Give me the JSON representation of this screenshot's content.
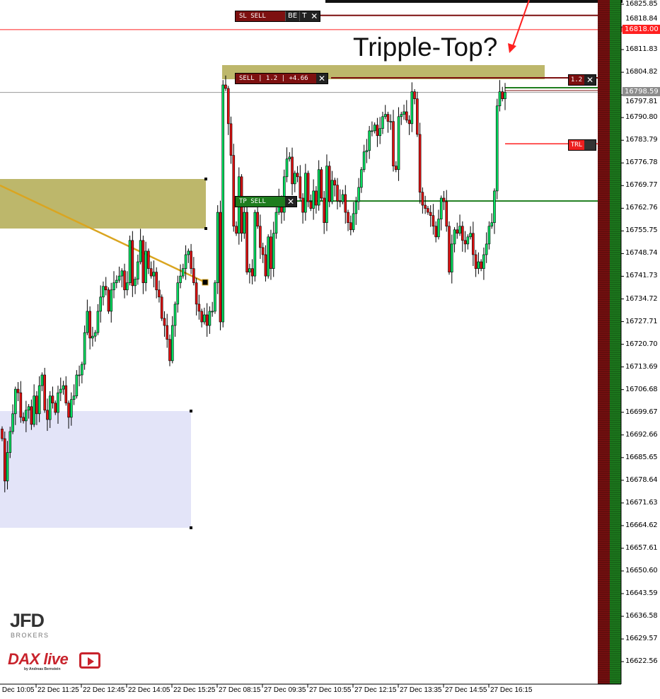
{
  "chart_data": {
    "type": "candlestick",
    "annotation": "Tripple-Top?",
    "ylim": [
      16619.5,
      16827.16
    ],
    "y_ticks": [
      "16825.85",
      "16818.84",
      "16811.83",
      "16804.82",
      "16797.81",
      "16790.80",
      "16783.79",
      "16776.78",
      "16769.77",
      "16762.76",
      "16755.75",
      "16748.74",
      "16741.73",
      "16734.72",
      "16727.71",
      "16720.70",
      "16713.69",
      "16706.68",
      "16699.67",
      "16692.66",
      "16685.65",
      "16678.64",
      "16671.63",
      "16664.62",
      "16657.61",
      "16650.60",
      "16643.59",
      "16636.58",
      "16629.57",
      "16622.56"
    ],
    "x_ticks": [
      "22 Dec 10:05",
      "22 Dec 11:25",
      "22 Dec 12:45",
      "22 Dec 14:05",
      "22 Dec 15:25",
      "27 Dec 08:15",
      "27 Dec 09:35",
      "27 Dec 10:55",
      "27 Dec 12:15",
      "27 Dec 13:35",
      "27 Dec 14:55",
      "27 Dec 16:15"
    ],
    "closes": [
      16691.5,
      16678.4,
      16687.2,
      16693.7,
      16699.2,
      16706.8,
      16705.7,
      16698.1,
      16697.0,
      16700.3,
      16701.4,
      16695.9,
      16704.7,
      16699.2,
      16707.9,
      16711.2,
      16700.3,
      16697.4,
      16704.7,
      16702.5,
      16699.6,
      16705.7,
      16706.8,
      16707.9,
      16702.5,
      16698.1,
      16703.6,
      16704.7,
      16711.2,
      16711.2,
      16714.5,
      16724.3,
      16730.9,
      16722.6,
      16723.2,
      16724.3,
      16730.9,
      16735.3,
      16738.6,
      16737.5,
      16730.9,
      16737.5,
      16739.7,
      16740.5,
      16741.8,
      16743.4,
      16737.5,
      16739.7,
      16752.8,
      16738.8,
      16740.8,
      16746.2,
      16752.8,
      16739.7,
      16749.5,
      16744.1,
      16741.8,
      16743.0,
      16737.5,
      16735.3,
      16728.7,
      16726.5,
      16722.2,
      16715.6,
      16726.5,
      16733.1,
      16739.7,
      16741.8,
      16744.1,
      16748.4,
      16749.5,
      16744.1,
      16739.7,
      16733.1,
      16730.9,
      16727.6,
      16729.8,
      16726.5,
      16730.9,
      16730.9,
      16739.7,
      16761.5,
      16727.6,
      16800.9,
      16799.8,
      16788.9,
      16779.1,
      16757.2,
      16755.0,
      16772.5,
      16755.0,
      16761.5,
      16743.0,
      16744.1,
      16741.8,
      16761.5,
      16757.2,
      16750.6,
      16748.4,
      16741.8,
      16753.9,
      16744.1,
      16755.0,
      16761.5,
      16765.9,
      16761.5,
      16772.5,
      16778.0,
      16778.6,
      16770.3,
      16773.6,
      16772.5,
      16765.9,
      16761.5,
      16773.6,
      16764.8,
      16762.7,
      16768.1,
      16763.7,
      16774.7,
      16765.9,
      16758.3,
      16775.8,
      16764.8,
      16771.4,
      16769.9,
      16765.0,
      16764.8,
      16767.0,
      16761.5,
      16758.3,
      16756.1,
      16761.1,
      16764.8,
      16769.2,
      16774.7,
      16780.2,
      16780.6,
      16786.7,
      16786.7,
      16788.5,
      16785.2,
      16787.4,
      16791.1,
      16791.8,
      16789.6,
      16789.6,
      16775.8,
      16774.7,
      16791.1,
      16791.8,
      16792.6,
      16790.0,
      16788.9,
      16798.8,
      16796.6,
      16785.6,
      16767.7,
      16763.7,
      16762.7,
      16761.5,
      16760.5,
      16757.2,
      16753.9,
      16759.4,
      16765.9,
      16764.8,
      16757.2,
      16743.0,
      16751.7,
      16756.1,
      16755.0,
      16757.2,
      16752.8,
      16751.7,
      16753.9,
      16755.0,
      16748.4,
      16744.1,
      16746.2,
      16744.1,
      16748.4,
      16751.7,
      16757.2,
      16758.3,
      16768.1,
      16794.4,
      16798.8,
      16796.6,
      16798.6
    ],
    "current_price": "16798.59",
    "alert_price": "16818.00",
    "colors": {
      "up": "#00e060",
      "down": "#e01010",
      "zone": "#bdb76b",
      "demand_zone": "#e3e4f8",
      "trendline": "#daa520"
    }
  },
  "trade": {
    "sl_label": "SL SELL",
    "sl_price": 16822.4,
    "be_label": "BE",
    "t_label": "T",
    "close_glyph": "✕",
    "entry_label": "SELL | 1.2 | +4.66",
    "entry_price": 16803.1,
    "lot_label": "1.2",
    "tp_label": "TP SELL",
    "tp_price": 16765.0,
    "trl_label": "TRL",
    "trl_price": 16782.7,
    "alert_price": 16818.0,
    "current_price": 16798.59
  },
  "logos": {
    "jfd": "JFD",
    "jfd_sub": "BROKERS",
    "dax": "DAX live",
    "dax_sub": "by Andreas Bernstein"
  }
}
